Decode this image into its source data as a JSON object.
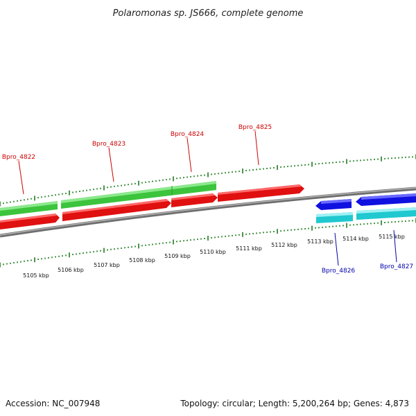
{
  "title": "Polaromonas sp. JS666, complete genome",
  "accession": "Accession: NC_007948",
  "topology": "Topology: circular; Length: 5,200,264 bp; Genes: 4,873",
  "colors": {
    "backbone": "#8c8c8c",
    "cds_green": "#3cc43c",
    "cds_red": "#e01010",
    "cds_blue": "#1010e0",
    "cds_cyan": "#20c8d0",
    "tick": "#1a7a1a",
    "label_red": "#cc0000",
    "label_blue": "#0000aa"
  },
  "scale_labels": [
    "5105 kbp",
    "5106 kbp",
    "5107 kbp",
    "5108 kbp",
    "5109 kbp",
    "5110 kbp",
    "5111 kbp",
    "5112 kbp",
    "5113 kbp",
    "5114 kbp",
    "5115 kbp"
  ],
  "gene_labels": [
    {
      "name": "Bpro_4822",
      "strand": "forward"
    },
    {
      "name": "Bpro_4823",
      "strand": "forward"
    },
    {
      "name": "Bpro_4824",
      "strand": "forward"
    },
    {
      "name": "Bpro_4825",
      "strand": "forward"
    },
    {
      "name": "Bpro_4826",
      "strand": "reverse"
    },
    {
      "name": "Bpro_4827",
      "strand": "reverse"
    }
  ]
}
